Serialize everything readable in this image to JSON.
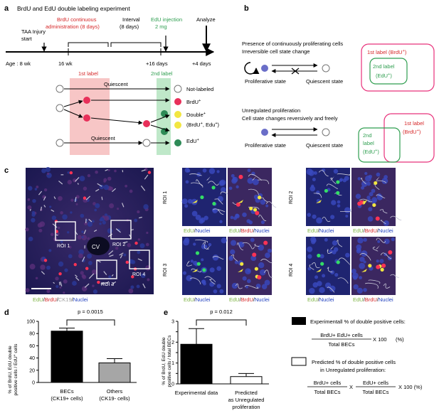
{
  "panels": {
    "a": {
      "letter": "a",
      "title": "BrdU and EdU double labeling experiment",
      "timeline": {
        "taa_line1": "TAA Injury",
        "taa_line2": "start",
        "brdu_line1": "BrdU continuous",
        "brdu_line2": "administration (8 days)",
        "interval_line1": "Interval",
        "interval_line2": "(8 days)",
        "edu_line1": "EdU injection",
        "edu_line2": "2 mg",
        "analyze": "Analyze",
        "age": "Age : 8 wk",
        "wk16": "16 wk",
        "plus16": "+16 days",
        "plus4": "+4 days"
      },
      "first_label": "1st label",
      "second_label": "2nd label",
      "quiescent_top": "Quiescent",
      "quiescent_bottom": "Quiescent",
      "legend": {
        "not_labeled": "Not-labeled",
        "brdu_main": "BrdU",
        "brdu_sup": "+",
        "double_main": "Double",
        "double_sup": "+",
        "double_sub_a": "(BrdU",
        "double_sub_sup1": "+",
        "double_sub_b": ", Edu",
        "double_sub_sup2": "+",
        "double_sub_c": ")",
        "edu_main": "EdU",
        "edu_sup": "+"
      },
      "colors": {
        "brdu": "#e8305a",
        "edu": "#2e8b57",
        "double": "#f2e641",
        "first_band": "#f7c6c6",
        "second_band": "#bfe8c9"
      }
    },
    "b": {
      "letter": "b",
      "top_line1": "Presence of continuously proliferating cells",
      "top_line2": "Irreversible cell state change",
      "proliferative_top": "Proliferative state",
      "quiescent_state_top": "Quiescent state",
      "venn_top_outer_main": "1st label (BrdU",
      "venn_top_outer_sup": "+",
      "venn_top_outer_end": ")",
      "venn_top_inner_line1": "2nd label",
      "venn_top_inner_line2a": "(EdU",
      "venn_top_inner_sup": "+",
      "venn_top_inner_line2b": ")",
      "bottom_line1": "Unregulated proliferation",
      "bottom_line2": "Cell state changes reversively and freely",
      "proliferative_bottom": "Proliferative state",
      "quiescent_state_bottom": "Quiescent state",
      "venn_b_pink_line1": "1st label",
      "venn_b_pink_line2a": "(BrdU",
      "venn_b_pink_sup": "+",
      "venn_b_pink_line2b": ")",
      "venn_b_green_line1": "2nd",
      "venn_b_green_line2": "label",
      "venn_b_green_line3a": "(EdU",
      "venn_b_green_sup": "+",
      "venn_b_green_line3b": ")"
    },
    "c": {
      "letter": "c",
      "cv": "CV",
      "roi1": "ROI 1",
      "roi2": "ROI 2",
      "roi3": "ROI 3",
      "roi4": "ROI 4",
      "caption_edu": "EdU",
      "caption_brdu": "BrdU",
      "caption_ck19": "CK19",
      "caption_nuclei": "Nuclei",
      "sep": "/",
      "colors": {
        "edu": "#7cb342",
        "brdu": "#d62728",
        "ck19": "#9e9e9e",
        "nuclei": "#1f3fbf"
      }
    },
    "d": {
      "letter": "d",
      "pvalue": "p = 0.0015",
      "ylabel_line1": "% of BrdU, EdU double",
      "ylabel_line2": "positive cells / EdU",
      "ylabel_sup": "+",
      "ylabel_line2_end": " cells",
      "cat1_line1": "BECs",
      "cat1_line2": "(CK19+ cells)",
      "cat2_line1": "Others",
      "cat2_line2": "(CK19- cells)"
    },
    "e": {
      "letter": "e",
      "pvalue": "p = 0.012",
      "ylabel_line1": "% of BrdU, EdU double",
      "ylabel_line2": "positive cells / total BECs",
      "cat1_line1": "Experimental data",
      "cat2_line1": "Predicted",
      "cat2_line2": "as Unregulated",
      "cat2_line3": "proliferation",
      "legend1_title": "Experimentall % of double positive cells:",
      "legend1_num": "BrdU+ EdU+ cells",
      "legend1_den": "Total BECs",
      "legend1_mult": "X 100",
      "legend1_pct": "(%)",
      "legend2_title_line1": "Predicted % of double positive cells",
      "legend2_title_line2": "in Unregulated proliferation:",
      "legend2_num1": "BrdU+ cells",
      "legend2_den1": "Total BECs",
      "legend2_x": "X",
      "legend2_num2": "EdU+ cells",
      "legend2_den2": "Total BECs",
      "legend2_end": "X 100 (%)"
    }
  },
  "chart_data": [
    {
      "type": "bar",
      "categories": [
        "BECs (CK19+ cells)",
        "Others (CK19- cells)"
      ],
      "values": [
        84,
        32
      ],
      "errors": [
        5,
        7
      ],
      "colors": [
        "#000000",
        "#a6a6a6"
      ],
      "ylabel": "% of BrdU, EdU double positive cells / EdU+ cells",
      "ylim": [
        0,
        100
      ],
      "yticks": [
        0,
        20,
        40,
        60,
        80,
        100
      ],
      "annotation": "p = 0.0015"
    },
    {
      "type": "bar",
      "categories": [
        "Experimental data",
        "Predicted as Unregulated proliferation"
      ],
      "values": [
        1.9,
        0.35
      ],
      "errors": [
        0.75,
        0.15
      ],
      "colors": [
        "#000000",
        "#ffffff"
      ],
      "ylabel": "% of BrdU, EdU double positive cells / total BECs",
      "ylim": [
        0,
        3
      ],
      "yticks": [
        0,
        0.5,
        1,
        1.5,
        2,
        2.5,
        3
      ],
      "ytick_labels": [
        "0",
        "",
        "1",
        "",
        "2",
        "",
        "3"
      ],
      "annotation": "p = 0.012"
    }
  ]
}
